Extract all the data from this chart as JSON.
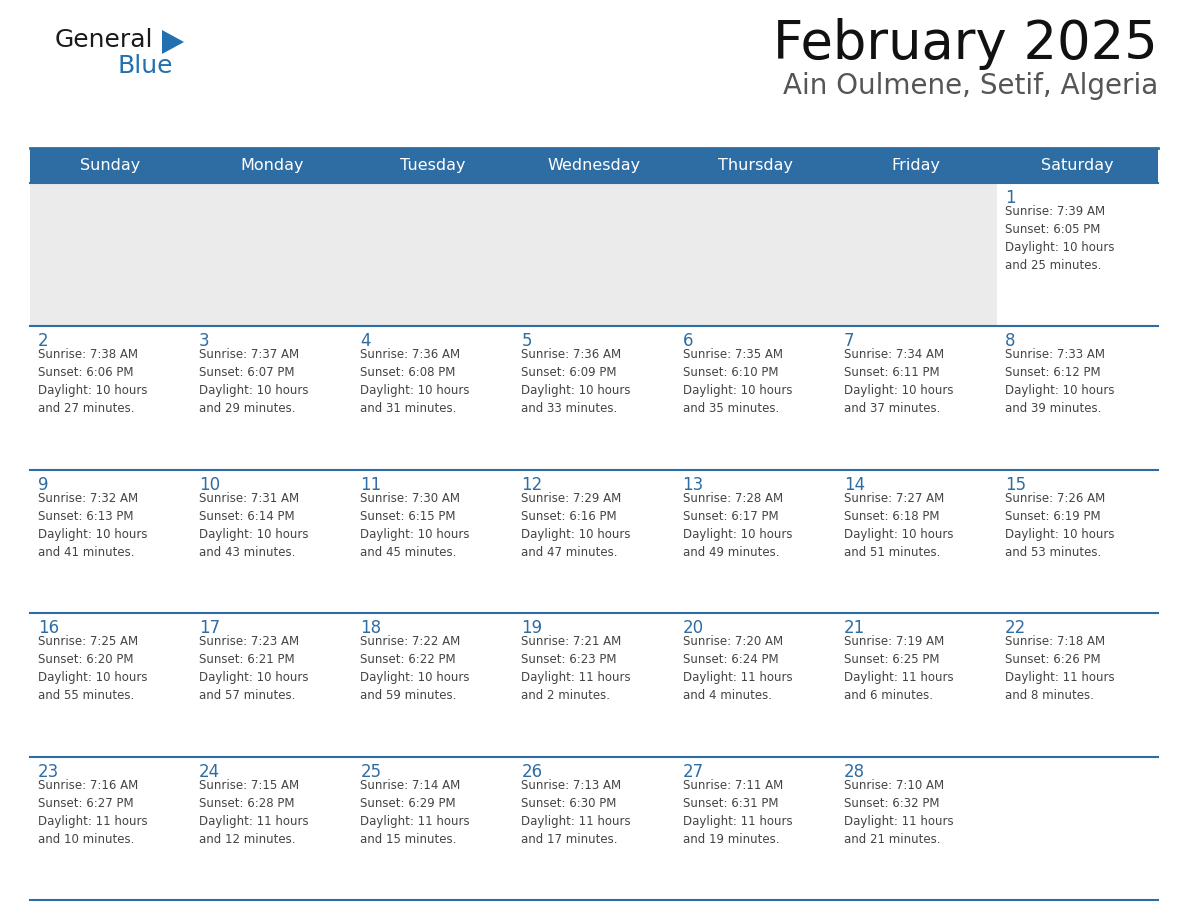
{
  "title": "February 2025",
  "subtitle": "Ain Oulmene, Setif, Algeria",
  "header_bg_color": "#2E6DA4",
  "header_text_color": "#FFFFFF",
  "cell_bg_white": "#FFFFFF",
  "cell_bg_gray": "#EBEBEB",
  "day_number_color": "#2E6DA4",
  "text_color": "#444444",
  "border_color": "#2E6DA4",
  "days_of_week": [
    "Sunday",
    "Monday",
    "Tuesday",
    "Wednesday",
    "Thursday",
    "Friday",
    "Saturday"
  ],
  "weeks": [
    [
      {
        "day": 0,
        "text": ""
      },
      {
        "day": 0,
        "text": ""
      },
      {
        "day": 0,
        "text": ""
      },
      {
        "day": 0,
        "text": ""
      },
      {
        "day": 0,
        "text": ""
      },
      {
        "day": 0,
        "text": ""
      },
      {
        "day": 1,
        "text": "Sunrise: 7:39 AM\nSunset: 6:05 PM\nDaylight: 10 hours\nand 25 minutes."
      }
    ],
    [
      {
        "day": 2,
        "text": "Sunrise: 7:38 AM\nSunset: 6:06 PM\nDaylight: 10 hours\nand 27 minutes."
      },
      {
        "day": 3,
        "text": "Sunrise: 7:37 AM\nSunset: 6:07 PM\nDaylight: 10 hours\nand 29 minutes."
      },
      {
        "day": 4,
        "text": "Sunrise: 7:36 AM\nSunset: 6:08 PM\nDaylight: 10 hours\nand 31 minutes."
      },
      {
        "day": 5,
        "text": "Sunrise: 7:36 AM\nSunset: 6:09 PM\nDaylight: 10 hours\nand 33 minutes."
      },
      {
        "day": 6,
        "text": "Sunrise: 7:35 AM\nSunset: 6:10 PM\nDaylight: 10 hours\nand 35 minutes."
      },
      {
        "day": 7,
        "text": "Sunrise: 7:34 AM\nSunset: 6:11 PM\nDaylight: 10 hours\nand 37 minutes."
      },
      {
        "day": 8,
        "text": "Sunrise: 7:33 AM\nSunset: 6:12 PM\nDaylight: 10 hours\nand 39 minutes."
      }
    ],
    [
      {
        "day": 9,
        "text": "Sunrise: 7:32 AM\nSunset: 6:13 PM\nDaylight: 10 hours\nand 41 minutes."
      },
      {
        "day": 10,
        "text": "Sunrise: 7:31 AM\nSunset: 6:14 PM\nDaylight: 10 hours\nand 43 minutes."
      },
      {
        "day": 11,
        "text": "Sunrise: 7:30 AM\nSunset: 6:15 PM\nDaylight: 10 hours\nand 45 minutes."
      },
      {
        "day": 12,
        "text": "Sunrise: 7:29 AM\nSunset: 6:16 PM\nDaylight: 10 hours\nand 47 minutes."
      },
      {
        "day": 13,
        "text": "Sunrise: 7:28 AM\nSunset: 6:17 PM\nDaylight: 10 hours\nand 49 minutes."
      },
      {
        "day": 14,
        "text": "Sunrise: 7:27 AM\nSunset: 6:18 PM\nDaylight: 10 hours\nand 51 minutes."
      },
      {
        "day": 15,
        "text": "Sunrise: 7:26 AM\nSunset: 6:19 PM\nDaylight: 10 hours\nand 53 minutes."
      }
    ],
    [
      {
        "day": 16,
        "text": "Sunrise: 7:25 AM\nSunset: 6:20 PM\nDaylight: 10 hours\nand 55 minutes."
      },
      {
        "day": 17,
        "text": "Sunrise: 7:23 AM\nSunset: 6:21 PM\nDaylight: 10 hours\nand 57 minutes."
      },
      {
        "day": 18,
        "text": "Sunrise: 7:22 AM\nSunset: 6:22 PM\nDaylight: 10 hours\nand 59 minutes."
      },
      {
        "day": 19,
        "text": "Sunrise: 7:21 AM\nSunset: 6:23 PM\nDaylight: 11 hours\nand 2 minutes."
      },
      {
        "day": 20,
        "text": "Sunrise: 7:20 AM\nSunset: 6:24 PM\nDaylight: 11 hours\nand 4 minutes."
      },
      {
        "day": 21,
        "text": "Sunrise: 7:19 AM\nSunset: 6:25 PM\nDaylight: 11 hours\nand 6 minutes."
      },
      {
        "day": 22,
        "text": "Sunrise: 7:18 AM\nSunset: 6:26 PM\nDaylight: 11 hours\nand 8 minutes."
      }
    ],
    [
      {
        "day": 23,
        "text": "Sunrise: 7:16 AM\nSunset: 6:27 PM\nDaylight: 11 hours\nand 10 minutes."
      },
      {
        "day": 24,
        "text": "Sunrise: 7:15 AM\nSunset: 6:28 PM\nDaylight: 11 hours\nand 12 minutes."
      },
      {
        "day": 25,
        "text": "Sunrise: 7:14 AM\nSunset: 6:29 PM\nDaylight: 11 hours\nand 15 minutes."
      },
      {
        "day": 26,
        "text": "Sunrise: 7:13 AM\nSunset: 6:30 PM\nDaylight: 11 hours\nand 17 minutes."
      },
      {
        "day": 27,
        "text": "Sunrise: 7:11 AM\nSunset: 6:31 PM\nDaylight: 11 hours\nand 19 minutes."
      },
      {
        "day": 28,
        "text": "Sunrise: 7:10 AM\nSunset: 6:32 PM\nDaylight: 11 hours\nand 21 minutes."
      },
      {
        "day": 0,
        "text": ""
      }
    ]
  ],
  "logo_general_color": "#1a1a1a",
  "logo_blue_color": "#2270B0",
  "figsize": [
    11.88,
    9.18
  ],
  "dpi": 100
}
